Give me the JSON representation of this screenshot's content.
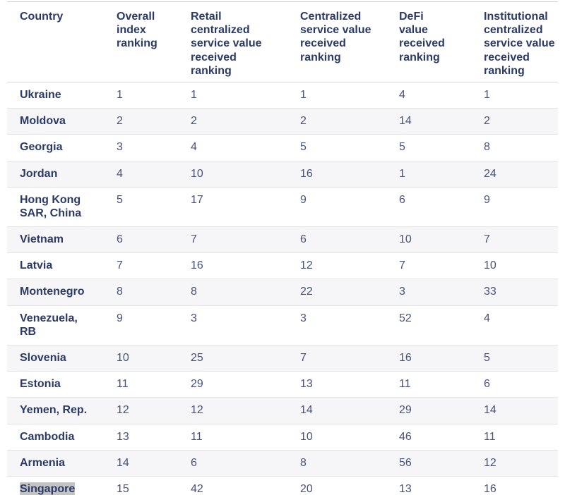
{
  "chart_data": {
    "type": "table",
    "columns": [
      "Country",
      "Overall index ranking",
      "Retail centralized service value received ranking",
      "Centralized service value received ranking",
      "DeFi value received ranking",
      "Institutional centralized service value received ranking"
    ],
    "rows": [
      [
        "Ukraine",
        1,
        1,
        1,
        4,
        1
      ],
      [
        "Moldova",
        2,
        2,
        2,
        14,
        2
      ],
      [
        "Georgia",
        3,
        4,
        5,
        5,
        8
      ],
      [
        "Jordan",
        4,
        10,
        16,
        1,
        24
      ],
      [
        "Hong Kong SAR, China",
        5,
        17,
        9,
        6,
        9
      ],
      [
        "Vietnam",
        6,
        7,
        6,
        10,
        7
      ],
      [
        "Latvia",
        7,
        16,
        12,
        7,
        10
      ],
      [
        "Montenegro",
        8,
        8,
        22,
        3,
        33
      ],
      [
        "Venezuela, RB",
        9,
        3,
        3,
        52,
        4
      ],
      [
        "Slovenia",
        10,
        25,
        7,
        16,
        5
      ],
      [
        "Estonia",
        11,
        29,
        13,
        11,
        6
      ],
      [
        "Yemen, Rep.",
        12,
        12,
        14,
        29,
        14
      ],
      [
        "Cambodia",
        13,
        11,
        10,
        46,
        11
      ],
      [
        "Armenia",
        14,
        6,
        8,
        56,
        12
      ],
      [
        "Singapore",
        15,
        42,
        20,
        13,
        16
      ]
    ]
  },
  "selection": {
    "selected_text": "Singapore",
    "selection_color": "#c3c3c3"
  },
  "colors": {
    "header_text": "#2b3a66",
    "country_text": "#2b3a66",
    "value_text": "#46527d",
    "alt_row_background": "#f6f6f8",
    "row_border": "#e3e3e8",
    "top_border": "#cdcdd3",
    "page_background": "#ffffff"
  }
}
